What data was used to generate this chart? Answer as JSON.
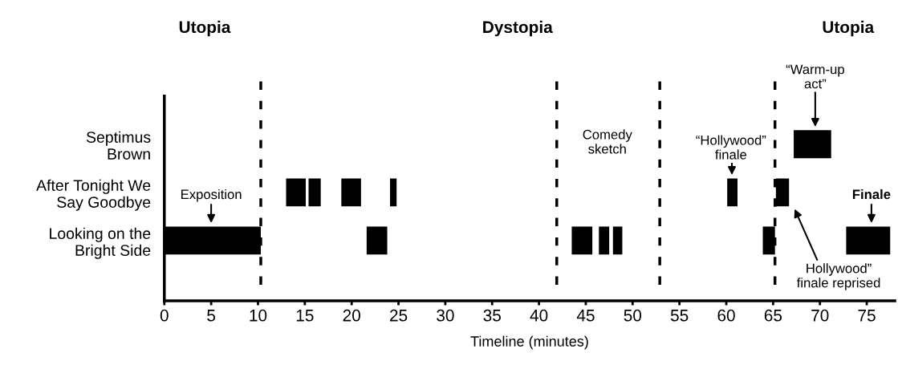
{
  "chart_data": {
    "type": "bar",
    "orientation": "horizontal",
    "xlabel": "Timeline (minutes)",
    "categories": [
      "Septimus\nBrown",
      "After Tonight We\nSay Goodbye",
      "Looking on the\nBright Side"
    ],
    "series": [
      {
        "color": "#000000",
        "base": [
          67.2,
          13.0,
          0
        ],
        "values": [
          4.0,
          2.1,
          10.3
        ]
      },
      {
        "color": "#000000",
        "base": [
          null,
          15.4,
          21.6
        ],
        "values": [
          null,
          1.3,
          2.2
        ]
      },
      {
        "color": "#000000",
        "base": [
          null,
          18.9,
          43.5
        ],
        "values": [
          null,
          2.1,
          2.2
        ]
      },
      {
        "color": "#000000",
        "base": [
          null,
          24.1,
          46.4
        ],
        "values": [
          null,
          0.7,
          1.1
        ]
      },
      {
        "color": "#000000",
        "base": [
          null,
          60.1,
          47.9
        ],
        "values": [
          null,
          1.1,
          1.0
        ]
      },
      {
        "color": "#000000",
        "base": [
          null,
          65.3,
          63.9
        ],
        "values": [
          null,
          1.4,
          1.3
        ]
      },
      {
        "color": "#000000",
        "base": [
          null,
          null,
          72.8
        ],
        "values": [
          null,
          null,
          4.7
        ]
      }
    ],
    "xlim": [
      0,
      78
    ],
    "xticks": [
      0,
      5,
      10,
      15,
      20,
      25,
      30,
      35,
      40,
      45,
      50,
      55,
      60,
      65,
      70,
      75
    ],
    "ref_lines": [
      {
        "axis": "x",
        "value": 10.3,
        "color": "#000000",
        "line_style": "dashed"
      },
      {
        "axis": "x",
        "value": 41.9,
        "color": "#000000",
        "line_style": "dashed"
      },
      {
        "axis": "x",
        "value": 52.9,
        "color": "#000000",
        "line_style": "dashed"
      },
      {
        "axis": "x",
        "value": 65.2,
        "color": "#000000",
        "line_style": "dashed"
      }
    ],
    "annotations": [
      "Utopia",
      "Dystopia",
      "Utopia",
      "Exposition",
      "Comedy\nsketch",
      "“Hollywood”\nfinale",
      "“Warm-up\nact”",
      "Finale",
      "Hollywood”\nfinale reprised"
    ],
    "grid": false
  }
}
